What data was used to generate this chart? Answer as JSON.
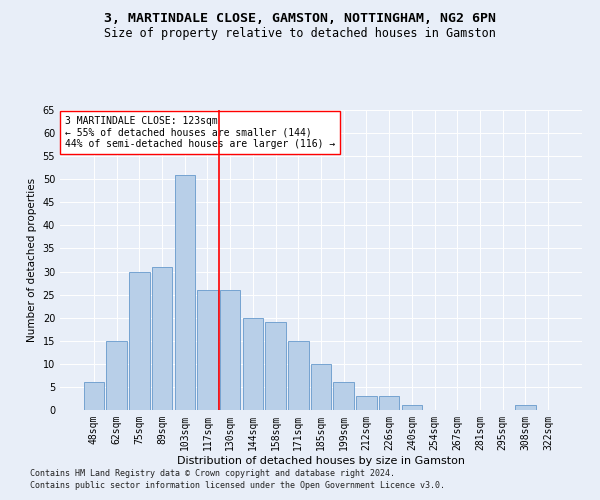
{
  "title1": "3, MARTINDALE CLOSE, GAMSTON, NOTTINGHAM, NG2 6PN",
  "title2": "Size of property relative to detached houses in Gamston",
  "xlabel": "Distribution of detached houses by size in Gamston",
  "ylabel": "Number of detached properties",
  "categories": [
    "48sqm",
    "62sqm",
    "75sqm",
    "89sqm",
    "103sqm",
    "117sqm",
    "130sqm",
    "144sqm",
    "158sqm",
    "171sqm",
    "185sqm",
    "199sqm",
    "212sqm",
    "226sqm",
    "240sqm",
    "254sqm",
    "267sqm",
    "281sqm",
    "295sqm",
    "308sqm",
    "322sqm"
  ],
  "values": [
    6,
    15,
    30,
    31,
    51,
    26,
    26,
    20,
    19,
    15,
    10,
    6,
    3,
    3,
    1,
    0,
    0,
    0,
    0,
    1,
    0
  ],
  "bar_color": "#b8cfe8",
  "bar_edge_color": "#6699cc",
  "vline_x": 5.5,
  "vline_color": "red",
  "annotation_text": "3 MARTINDALE CLOSE: 123sqm\n← 55% of detached houses are smaller (144)\n44% of semi-detached houses are larger (116) →",
  "annotation_box_color": "white",
  "annotation_box_edge": "red",
  "ylim": [
    0,
    65
  ],
  "yticks": [
    0,
    5,
    10,
    15,
    20,
    25,
    30,
    35,
    40,
    45,
    50,
    55,
    60,
    65
  ],
  "footer1": "Contains HM Land Registry data © Crown copyright and database right 2024.",
  "footer2": "Contains public sector information licensed under the Open Government Licence v3.0.",
  "background_color": "#e8eef8",
  "plot_bg_color": "#e8eef8",
  "title1_fontsize": 9.5,
  "title2_fontsize": 8.5,
  "xlabel_fontsize": 8,
  "ylabel_fontsize": 7.5,
  "tick_fontsize": 7,
  "annotation_fontsize": 7,
  "footer_fontsize": 6
}
